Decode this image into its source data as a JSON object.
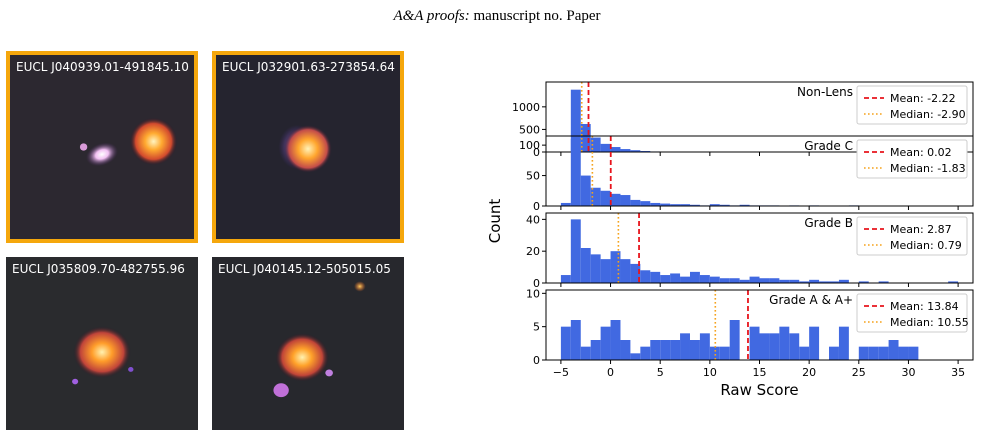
{
  "header": {
    "journal": "A&A proofs:",
    "manuscript": "manuscript no. Paper"
  },
  "cutouts": [
    {
      "id": "EUCL J040939.01-491845.10",
      "highlighted": true
    },
    {
      "id": "EUCL J032901.63-273854.64",
      "highlighted": true
    },
    {
      "id": "EUCL J035809.70-482755.96",
      "highlighted": false
    },
    {
      "id": "EUCL J040145.12-505015.05",
      "highlighted": false
    }
  ],
  "colors": {
    "highlight": "#f5a70c",
    "bars": "#4169e1",
    "mean": "#e8141c",
    "median": "#f5a21b"
  },
  "chart_data": {
    "type": "bar",
    "xlabel": "Raw Score",
    "ylabel": "Count",
    "xlim": [
      -6.5,
      36.5
    ],
    "xticks": [
      -5,
      0,
      5,
      10,
      15,
      20,
      25,
      30,
      35
    ],
    "bin_start": -5,
    "bin_width": 1,
    "legend_position": "upper-right",
    "panels": [
      {
        "name": "Non-Lens",
        "ylim": [
          0,
          1550
        ],
        "yticks": [
          0,
          500,
          1000
        ],
        "mean": -2.22,
        "mean_label": "Mean: -2.22",
        "median": -2.9,
        "median_label": "Median: -2.90",
        "values": [
          0,
          1380,
          620,
          320,
          180,
          110,
          65,
          40,
          22,
          12,
          6,
          3
        ]
      },
      {
        "name": "Grade C",
        "ylim": [
          0,
          115
        ],
        "yticks": [
          0,
          50,
          100
        ],
        "mean": 0.02,
        "mean_label": "Mean: 0.02",
        "median": -1.83,
        "median_label": "Median: -1.83",
        "values": [
          5,
          110,
          50,
          30,
          25,
          20,
          18,
          10,
          8,
          5,
          4,
          3,
          3,
          2,
          1,
          3,
          2,
          1,
          2,
          1,
          1,
          1,
          0,
          1,
          0,
          1,
          0,
          0,
          0,
          1
        ]
      },
      {
        "name": "Grade B",
        "ylim": [
          0,
          44
        ],
        "yticks": [
          0,
          20,
          40
        ],
        "mean": 2.87,
        "mean_label": "Mean: 2.87",
        "median": 0.79,
        "median_label": "Median: 0.79",
        "values": [
          5,
          40,
          22,
          18,
          15,
          20,
          15,
          12,
          8,
          7,
          5,
          6,
          4,
          7,
          5,
          4,
          3,
          3,
          2,
          4,
          3,
          3,
          2,
          2,
          1,
          2,
          1,
          1,
          2,
          0,
          1,
          0,
          1,
          0,
          0,
          0,
          0,
          0,
          0,
          1
        ]
      },
      {
        "name": "Grade A & A+",
        "ylim": [
          0,
          10.5
        ],
        "yticks": [
          0,
          5,
          10
        ],
        "mean": 13.84,
        "mean_label": "Mean: 13.84",
        "median": 10.55,
        "median_label": "Median: 10.55",
        "values": [
          5,
          6,
          2,
          3,
          5,
          6,
          3,
          1,
          2,
          3,
          3,
          3,
          4,
          3,
          4,
          2,
          2,
          6,
          0,
          5,
          4,
          4,
          5,
          4,
          2,
          5,
          0,
          2,
          5,
          0,
          2,
          2,
          2,
          3,
          2,
          2
        ]
      }
    ]
  }
}
